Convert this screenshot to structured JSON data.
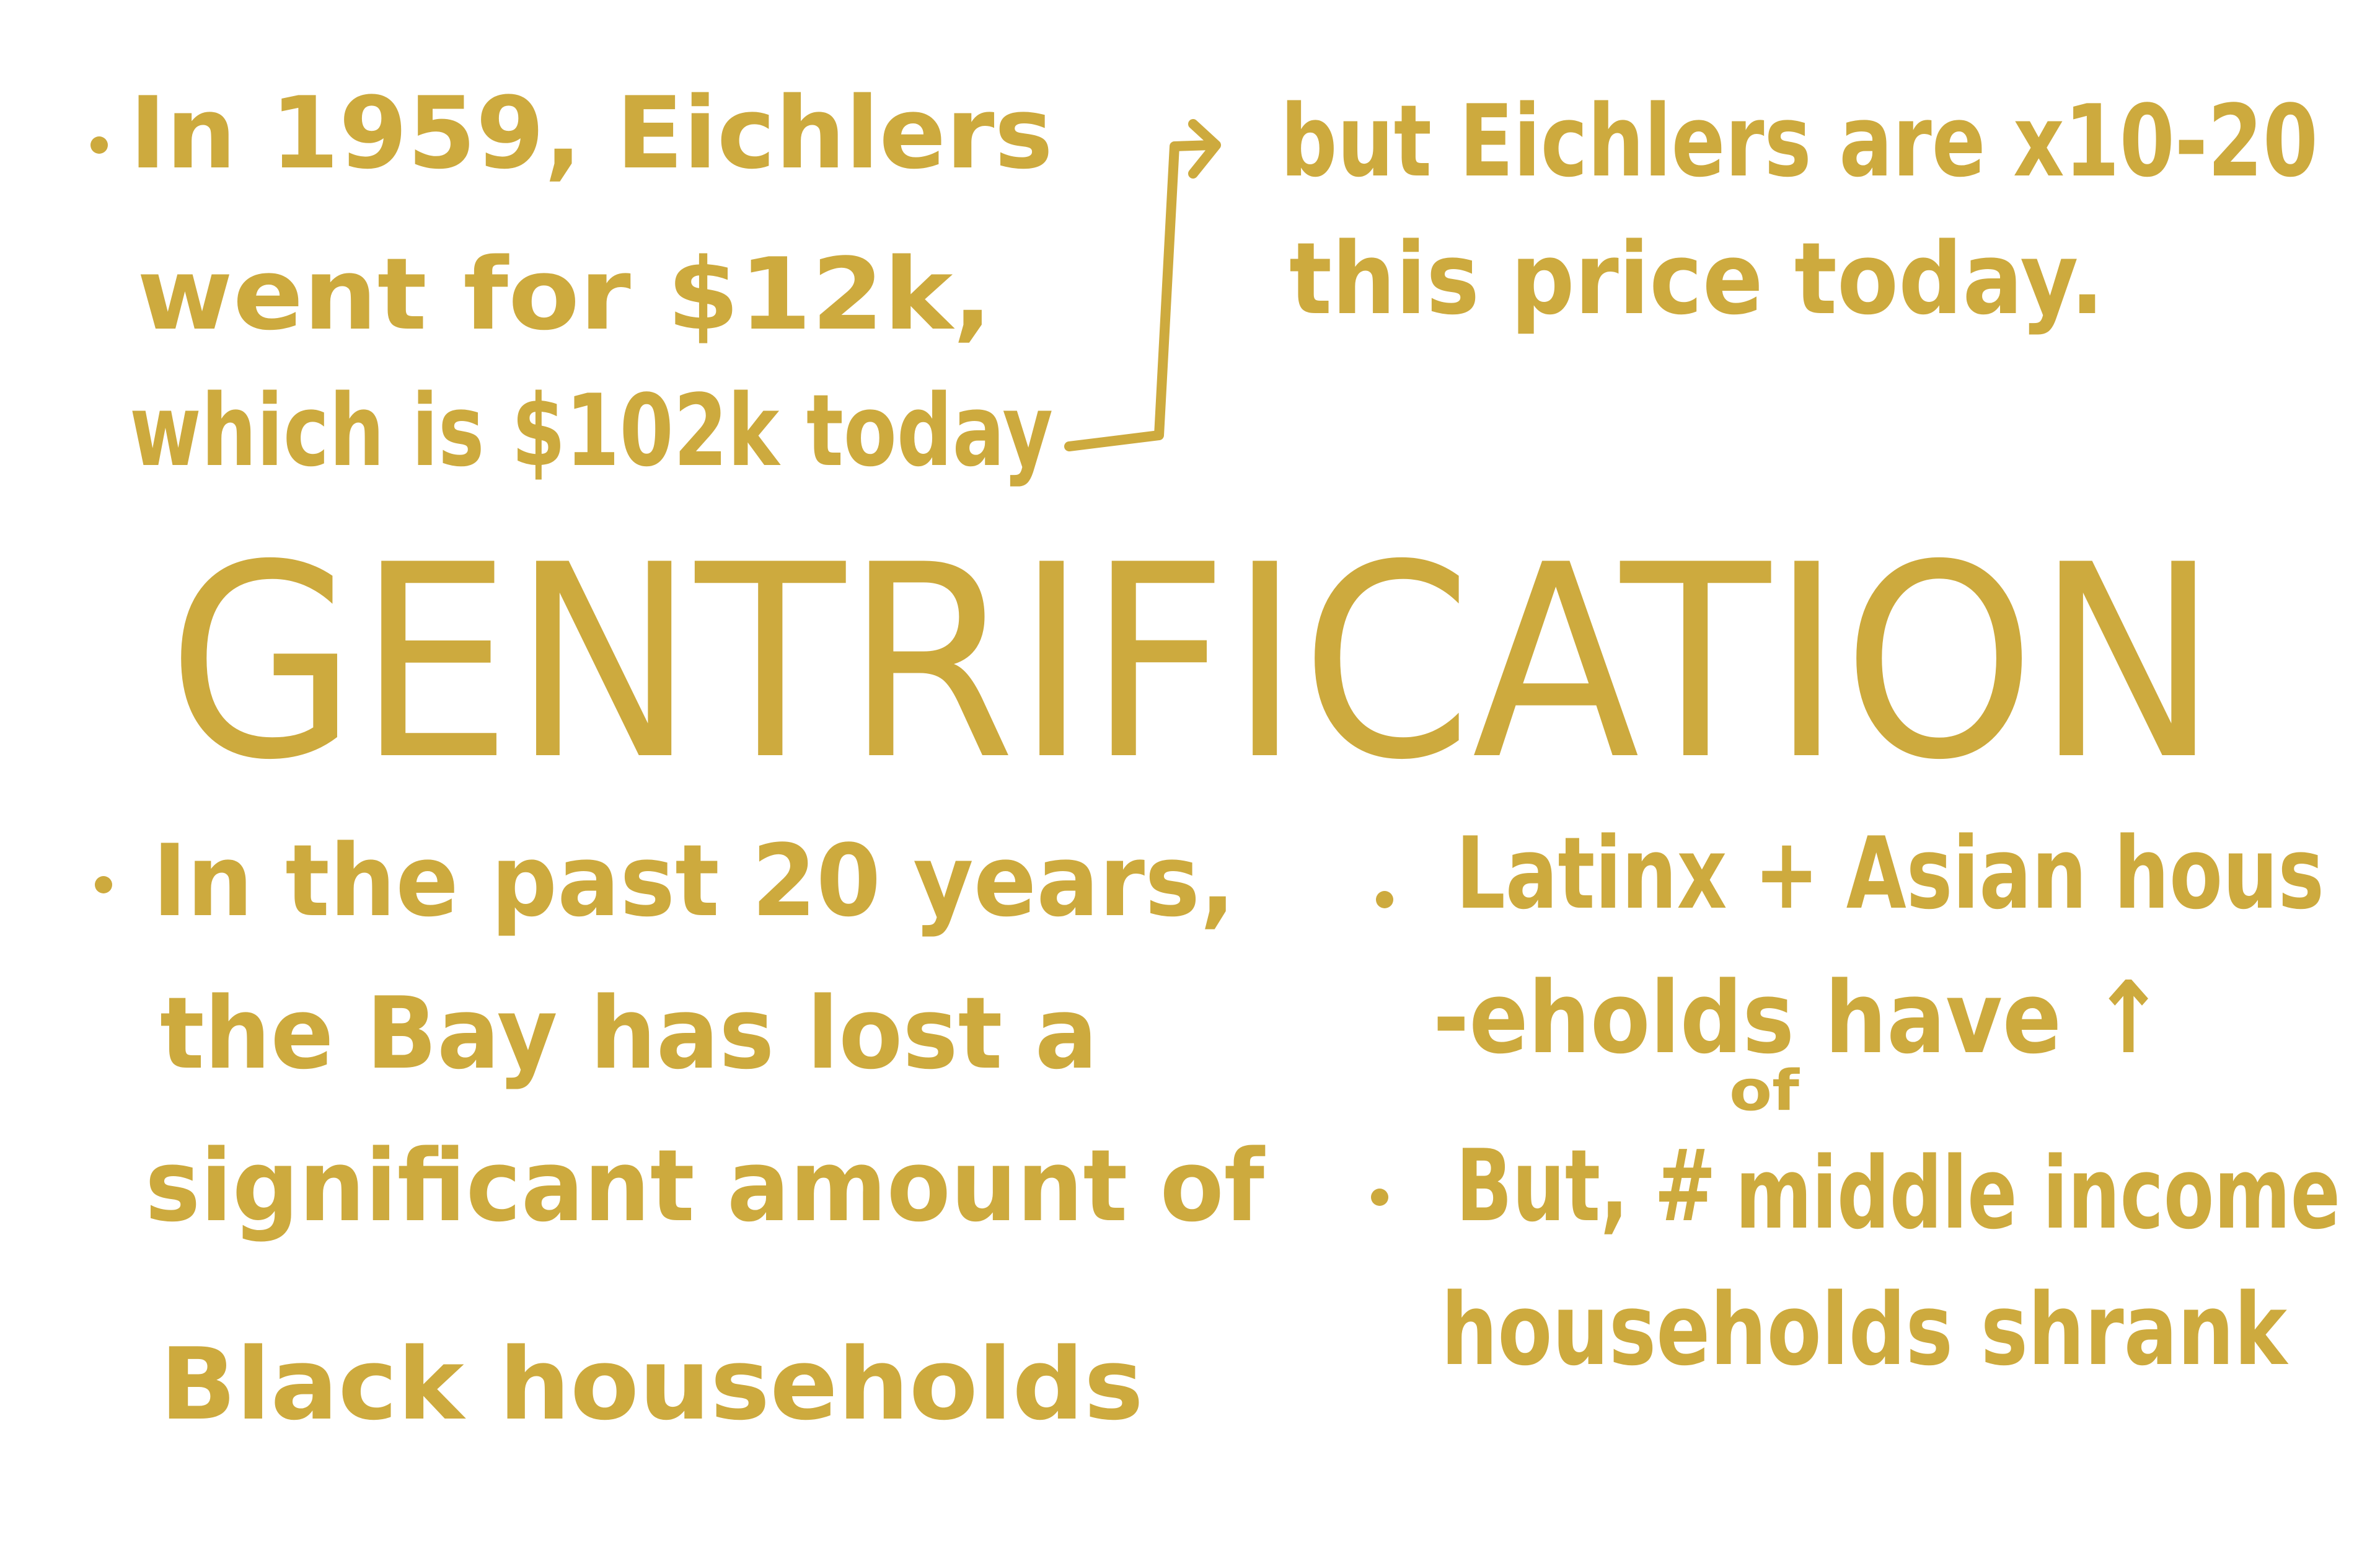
{
  "notes": {
    "top_left": [
      "In 1959, Eichlers",
      "went for $12k,",
      "which is $102k today"
    ],
    "top_right": [
      "but Eichlers are x10-20",
      "this price today."
    ],
    "title": "GENTRIFICATION",
    "bottom_left": [
      "In the past 20 years,",
      "the Bay has lost a",
      "significant amount of",
      "Black households"
    ],
    "bottom_right_1": [
      "Latinx + Asian hous",
      "-eholds have ↑"
    ],
    "bottom_right_2": [
      "But, #",
      "of",
      "middle income",
      "households shrank"
    ]
  }
}
